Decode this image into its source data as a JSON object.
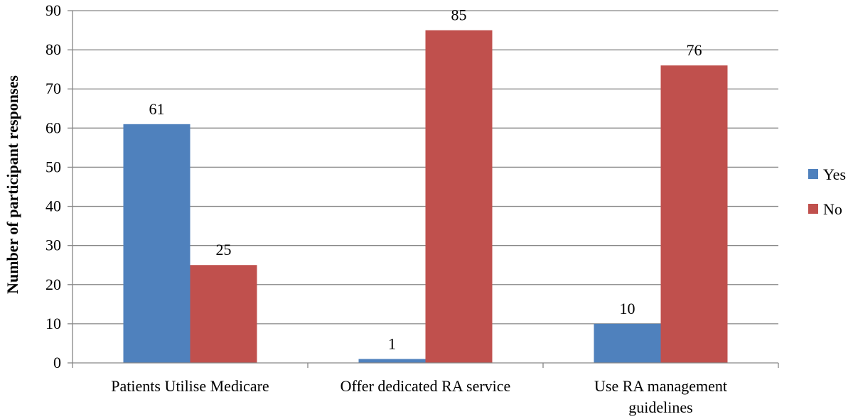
{
  "chart_data": {
    "type": "bar",
    "title": "",
    "xlabel": "",
    "ylabel": "Number of participant responses",
    "ylim": [
      0,
      90
    ],
    "yticks": [
      0,
      10,
      20,
      30,
      40,
      50,
      60,
      70,
      80,
      90
    ],
    "grid": true,
    "legend_position": "right",
    "categories": [
      [
        "Patients Utilise Medicare"
      ],
      [
        "Offer dedicated RA service"
      ],
      [
        "Use RA management",
        "guidelines"
      ]
    ],
    "series": [
      {
        "name": "Yes",
        "color": "#4F81BD",
        "values": [
          61,
          1,
          10
        ]
      },
      {
        "name": "No",
        "color": "#C0504D",
        "values": [
          25,
          85,
          76
        ]
      }
    ]
  }
}
